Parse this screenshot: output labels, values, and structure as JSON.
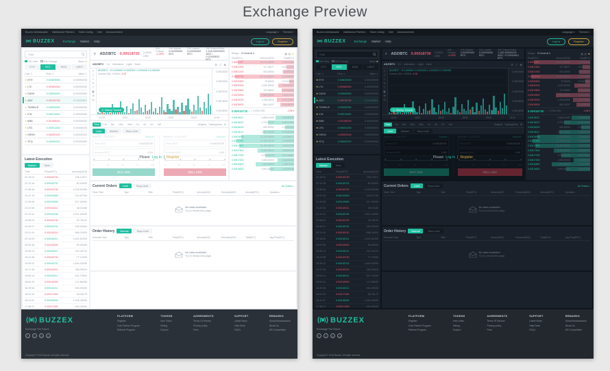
{
  "page": {
    "title": "Exchange Preview"
  },
  "ex": {
    "topbar": {
      "links": [
        "Buzzex Ambassador",
        "Institutional Partners",
        "Token Listing",
        "Vote",
        "Announcement"
      ],
      "language": "Language",
      "themes": "Themes",
      "caret": "▾"
    },
    "nav": {
      "brand": "BUZZEX",
      "items": [
        {
          "label": "Exchange",
          "cls": "active"
        },
        {
          "label": "Market"
        },
        {
          "label": "Help"
        }
      ],
      "login": "Log In",
      "register": "Register"
    },
    "market": {
      "search": "Coin",
      "filters": [
        {
          "label": "24h View",
          "cls": "checked"
        },
        {
          "label": "24h Change"
        }
      ],
      "show": "Show",
      "star": "★",
      "sort": "⇅",
      "tabs": [
        {
          "label": "ETH"
        },
        {
          "label": "BTC",
          "cls": "active"
        },
        {
          "label": "NGN"
        },
        {
          "label": "USDT"
        }
      ],
      "cols": {
        "coin": "Coin",
        "price": "Price",
        "value": "Value"
      },
      "rows": [
        {
          "star": "★",
          "coin": "ETH",
          "price": "0.02823000",
          "value": "0.00000000",
          "cls": "up"
        },
        {
          "star": "★",
          "coin": "LTC",
          "price": "0.00960000",
          "value": "0.00000000",
          "cls": "down"
        },
        {
          "star": "★",
          "coin": "DASH",
          "price": "0.02600000",
          "value": "0.00000000",
          "cls": "up"
        },
        {
          "star": "★",
          "coin": "ADZ",
          "price": "0.00018730",
          "value": "0.21532812",
          "cls": "down active"
        },
        {
          "star": "★",
          "coin": "TWINKLE",
          "price": "0.00000052",
          "value": "0.00000000",
          "cls": "up"
        },
        {
          "star": "★",
          "coin": "ICN",
          "price": "0.00011000",
          "value": "0.00000000",
          "cls": "up"
        },
        {
          "star": "★",
          "coin": "BNB",
          "price": "0.00158000",
          "value": "0.00000000",
          "cls": "down"
        },
        {
          "star": "★",
          "coin": "LRC",
          "price": "0.00001200",
          "value": "0.00000000",
          "cls": "up"
        },
        {
          "star": "★",
          "coin": "DRGN",
          "price": "0.00009100",
          "value": "0.00000000",
          "cls": "down"
        },
        {
          "star": "★",
          "coin": "STQ",
          "price": "0.00000210",
          "value": "0.00000000",
          "cls": "up"
        }
      ]
    },
    "latest": {
      "title": "Latest Execution",
      "tabs": [
        {
          "label": "Market",
          "cls": "active"
        },
        {
          "label": "Mine"
        }
      ],
      "cols": {
        "time": "Time",
        "price": "Price(BTC)",
        "amount": "Amount(ADZ)"
      },
      "rows": [
        {
          "time": "22:15:01",
          "price": "0.00018730",
          "amt": "195.12871",
          "cls": "down"
        },
        {
          "time": "22:12:18",
          "price": "0.00018731",
          "amt": "80.00000",
          "cls": "up"
        },
        {
          "time": "21:58:46",
          "price": "0.00018730",
          "amt": "1,029.82456",
          "cls": "down"
        },
        {
          "time": "21:47:15",
          "price": "0.00019500",
          "amt": "224.67790",
          "cls": "up"
        },
        {
          "time": "21:39:08",
          "price": "0.00019500",
          "amt": "917.30000",
          "cls": "up"
        },
        {
          "time": "21:22:54",
          "price": "0.00018211",
          "amt": "46.01186",
          "cls": "down"
        },
        {
          "time": "21:10:31",
          "price": "0.00018730",
          "amt": "2,511.00000",
          "cls": "up"
        },
        {
          "time": "20:58:03",
          "price": "0.00018730",
          "amt": "33.78122",
          "cls": "down"
        },
        {
          "time": "20:45:27",
          "price": "0.00018731",
          "amt": "150.00000",
          "cls": "up"
        },
        {
          "time": "20:31:44",
          "price": "0.00018210",
          "amt": "868.24903",
          "cls": "down"
        },
        {
          "time": "20:18:09",
          "price": "0.00018211",
          "amt": "1,402.51000",
          "cls": "up"
        },
        {
          "time": "20:02:36",
          "price": "0.00018000",
          "amt": "95.00000",
          "cls": "down"
        },
        {
          "time": "19:55:12",
          "price": "0.00018211",
          "amt": "310.44710",
          "cls": "up"
        },
        {
          "time": "19:41:58",
          "price": "0.00018730",
          "amt": "77.12000",
          "cls": "down"
        },
        {
          "time": "19:30:22",
          "price": "0.00018731",
          "amt": "1,840.00000",
          "cls": "up"
        },
        {
          "time": "19:17:49",
          "price": "0.00018210",
          "amt": "266.09315",
          "cls": "down"
        },
        {
          "time": "19:05:14",
          "price": "0.00018211",
          "amt": "521.70000",
          "cls": "up"
        },
        {
          "time": "18:52:40",
          "price": "0.00018000",
          "amt": "112.88450",
          "cls": "down"
        },
        {
          "time": "18:39:06",
          "price": "0.00018211",
          "amt": "964.00000",
          "cls": "up"
        },
        {
          "time": "18:24:33",
          "price": "0.00017900",
          "amt": "58.33179",
          "cls": "down"
        },
        {
          "time": "18:11:57",
          "price": "0.00018000",
          "amt": "1,206.45000",
          "cls": "up"
        },
        {
          "time": "17:58:21",
          "price": "0.00017900",
          "amt": "440.00000",
          "cls": "down"
        },
        {
          "time": "17:45:48",
          "price": "0.00018000",
          "amt": "89.56230",
          "cls": "up"
        },
        {
          "time": "17:32:13",
          "price": "0.00017900",
          "amt": "735.19004",
          "cls": "down"
        }
      ]
    },
    "ticker": {
      "star": "★",
      "pair": "ADZ/BTC",
      "price": "0.00018730",
      "fiat": "0.0000 USD",
      "stats": [
        {
          "label": "24h Change",
          "value": "-4.08%",
          "cls": "down"
        },
        {
          "label": "24h Highest",
          "value": "0.00000000 BTC"
        },
        {
          "label": "24h Lowest",
          "value": "0.00000000 BTC"
        },
        {
          "label": "24h Volume/Value",
          "value": "1,183.00000000 ADZ / 0.21532812 BTC"
        }
      ]
    },
    "chart": {
      "tools": [
        {
          "name": "crosshair-tool-icon",
          "glyph": "＋"
        },
        {
          "name": "trendline-tool-icon",
          "glyph": "╱"
        },
        {
          "name": "wave-tool-icon",
          "glyph": "≈"
        },
        {
          "name": "draw-tool-icon",
          "glyph": "✎"
        },
        {
          "name": "text-tool-icon",
          "glyph": "T"
        },
        {
          "name": "pattern-tool-icon",
          "glyph": "▣"
        },
        {
          "name": "measure-tool-icon",
          "glyph": "⊕"
        },
        {
          "name": "zoom-tool-icon",
          "glyph": "◎"
        }
      ],
      "tb": {
        "pair": "ADZ/BTC",
        "interval": "1h",
        "indicators": "Indicators",
        "light": "Light",
        "dark": "Dark"
      },
      "right_icons": [
        {
          "name": "chart-settings-icon",
          "glyph": "⚙"
        },
        {
          "name": "fullscreen-icon",
          "glyph": "⤢"
        },
        {
          "name": "snapshot-icon",
          "glyph": "◉"
        }
      ],
      "legend1": "ADZ/BTC · O:0.000000 H:0.000000 L:1.000000 C:0.000000",
      "legend2": "Volume (20): 0.00000",
      "legend2_chg": "-4.08",
      "tutorial_icon": "◎",
      "tutorial": "Startup Tutorial",
      "yticks": [
        "0.00024000",
        "0.00022000",
        "0.00020000",
        "0.00018000",
        "0.00016000"
      ],
      "tag": "0.00018730",
      "xticks": [
        "12:00",
        "14:00",
        "16:00",
        "18:00",
        "20:00",
        "22:00"
      ],
      "bars": {
        "heights": [
          6,
          3,
          10,
          4,
          18,
          8,
          3,
          26,
          12,
          5,
          15,
          34,
          9,
          6,
          21,
          4,
          14,
          28,
          8,
          11,
          38,
          17,
          5,
          24,
          9,
          13,
          32,
          7,
          16,
          4,
          20,
          44,
          10,
          6,
          27,
          14,
          8,
          36,
          12,
          19,
          5,
          30,
          9,
          22,
          41,
          13,
          7,
          25,
          11,
          48,
          18,
          8,
          31,
          15,
          52,
          23
        ],
        "colors": "ggrgggrgggrggggrgggrggggrggggrgggrggggrgggrgggrggggrgggg"
      }
    },
    "trade": {
      "intervals": [
        {
          "label": "Time",
          "cls": "active"
        },
        {
          "label": "1m"
        },
        {
          "label": "5m"
        },
        {
          "label": "15m"
        },
        {
          "label": "30m"
        },
        {
          "label": "1h"
        },
        {
          "label": "4h"
        },
        {
          "label": "1D"
        },
        {
          "label": "1W"
        }
      ],
      "engine_a": "Original",
      "engine_b": "TradingView",
      "gear": "⚙",
      "tabs": [
        {
          "label": "Limit",
          "cls": "active"
        },
        {
          "label": "Market"
        },
        {
          "label": "Stop-Limit"
        }
      ],
      "buy": {
        "balance": "Balance : 0.000 BTC",
        "deposit": "Deposit ›",
        "price_label": "Price BTC",
        "price": "0.00018730",
        "amount_label": "Amount ADZ",
        "amount": "0.00",
        "button": "BUY ADZ"
      },
      "sell": {
        "balance": "Balance : 0.000 ADZ",
        "deposit": "Deposit ›",
        "price_label": "Price BTC",
        "price": "0.00018730",
        "amount_label": "Amount ADZ",
        "amount": "0.00",
        "button": "SELL ADZ"
      },
      "slider": [
        "0",
        "25",
        "50",
        "75",
        "100"
      ],
      "overlay": {
        "please": "Please",
        "login": "Log In",
        "sep": "|",
        "register": "Register"
      }
    },
    "book": {
      "merge": "Merge :",
      "merge_val": "8 Decimal",
      "caret": "▾",
      "modes": [
        {
          "name": "book-mode-all-icon",
          "glyph": "▦"
        },
        {
          "name": "book-mode-split-icon",
          "glyph": "▤"
        },
        {
          "name": "favorite-star-icon",
          "glyph": "★",
          "cls": "gold"
        }
      ],
      "cols": {
        "price": "Price(BTC)",
        "amount": "Amount (ADZ)",
        "total": "Total(BTC)"
      },
      "sells": [
        {
          "p": "0.00021977",
          "a": "21,814.44598",
          "t": "4.79414326",
          "d": 90
        },
        {
          "p": "0.00021500",
          "a": "117.53677",
          "t": "0.02527041",
          "d": 12
        },
        {
          "p": "0.00021000",
          "a": "500.00000",
          "t": "0.10500000",
          "d": 18
        },
        {
          "p": "0.00020700",
          "a": "24,734.62097",
          "t": "5.12006655",
          "d": 95
        },
        {
          "p": "0.00020500",
          "a": "75.30929",
          "t": "0.01543841",
          "d": 8
        },
        {
          "p": "0.00020000",
          "a": "1,000.00000",
          "t": "0.20000000",
          "d": 25
        },
        {
          "p": "0.00019800",
          "a": "763.54800",
          "t": "0.15118250",
          "d": 20
        },
        {
          "p": "0.00019500",
          "a": "7,963.00000",
          "t": "1.55278500",
          "d": 55
        },
        {
          "p": "0.00019200",
          "a": "1,288.00000",
          "t": "0.24729600",
          "d": 28
        },
        {
          "p": "0.00018900",
          "a": "860.14297",
          "t": "0.16256702",
          "d": 22
        }
      ],
      "mid": {
        "price": "0.00018730",
        "arrow": "↑",
        "approx": "≈ 0.0000 USD",
        "chg": "-4.08%"
      },
      "buys": [
        {
          "p": "0.00018211",
          "a": "1,685.41429",
          "t": "0.30692870",
          "d": 30
        },
        {
          "p": "0.00018210",
          "a": "2,730.00000",
          "t": "0.49713300",
          "d": 42
        },
        {
          "p": "0.00018200",
          "a": "550.00000",
          "t": "0.10010000",
          "d": 14
        },
        {
          "p": "0.00018111",
          "a": "3,897.51362",
          "t": "0.70587846",
          "d": 50
        },
        {
          "p": "0.00018000",
          "a": "12,125.82626",
          "t": "2.18264873",
          "d": 85
        },
        {
          "p": "0.00017900",
          "a": "17,925.31228",
          "t": "3.20863090",
          "d": 92
        },
        {
          "p": "0.00017800",
          "a": "13,456.62000",
          "t": "2.39527836",
          "d": 88
        },
        {
          "p": "0.00017500",
          "a": "5,132.93571",
          "t": "0.89826375",
          "d": 58
        },
        {
          "p": "0.00017200",
          "a": "3,332.95708",
          "t": "0.57326862",
          "d": 46
        },
        {
          "p": "0.00017000",
          "a": "1,556.00000",
          "t": "0.26452000",
          "d": 26
        },
        {
          "p": "0.00016800",
          "a": "7,064.00000",
          "t": "1.18675200",
          "d": 62
        },
        {
          "p": "0.00016500",
          "a": "2,694.36900",
          "t": "0.44457088",
          "d": 38
        }
      ]
    },
    "corders": {
      "title": "Current Orders",
      "tabs": [
        {
          "label": "Limit",
          "cls": "active"
        },
        {
          "label": "Stop-Limit"
        }
      ],
      "link": "All Orders ›",
      "cols": [
        "Order Time",
        "Type",
        "Side",
        "Price(BTC)",
        "Amount(ADZ)",
        "Executed(ADZ)",
        "Amount(BTC)",
        "Operation"
      ]
    },
    "history": {
      "title": "Order History",
      "tabs": [
        {
          "label": "Normal",
          "cls": "active"
        },
        {
          "label": "Stop-Limit"
        }
      ],
      "cols": [
        "Executed Time",
        "Type",
        "Side",
        "Price(BTC)",
        "Amount(ADZ)",
        "Executed(ADZ)",
        "Total(BTC)",
        "Avg Price(BTC)"
      ]
    },
    "empty": {
      "t1": "No data available.",
      "t2": "Try to reload this page."
    },
    "footer": {
      "brand": "BUZZEX",
      "tagline": "Exchange The Future",
      "social": [
        {
          "name": "facebook-icon",
          "glyph": "f"
        },
        {
          "name": "twitter-icon",
          "glyph": "t"
        },
        {
          "name": "google-plus-icon",
          "glyph": "G"
        },
        {
          "name": "linkedin-icon",
          "glyph": "in"
        }
      ],
      "copyright": "Copyright © 2018 Buzzex. All rights reserved.",
      "cols": [
        {
          "title": "PLATFORM",
          "links": [
            "Register",
            "Coin Partner Program",
            "Referral Program"
          ]
        },
        {
          "title": "TOKENS",
          "links": [
            "Intro Video",
            "Mining",
            "Explore"
          ]
        },
        {
          "title": "AGREEMENTS",
          "links": [
            "Terms Of Service",
            "Privacy policy",
            "Fees"
          ]
        },
        {
          "title": "SUPPORT",
          "links": [
            "Latest News",
            "Help Desk",
            "FAQ's"
          ]
        },
        {
          "title": "REMARKS",
          "links": [
            "Global Ambassadors",
            "About Us",
            "API Competition"
          ]
        }
      ]
    }
  }
}
